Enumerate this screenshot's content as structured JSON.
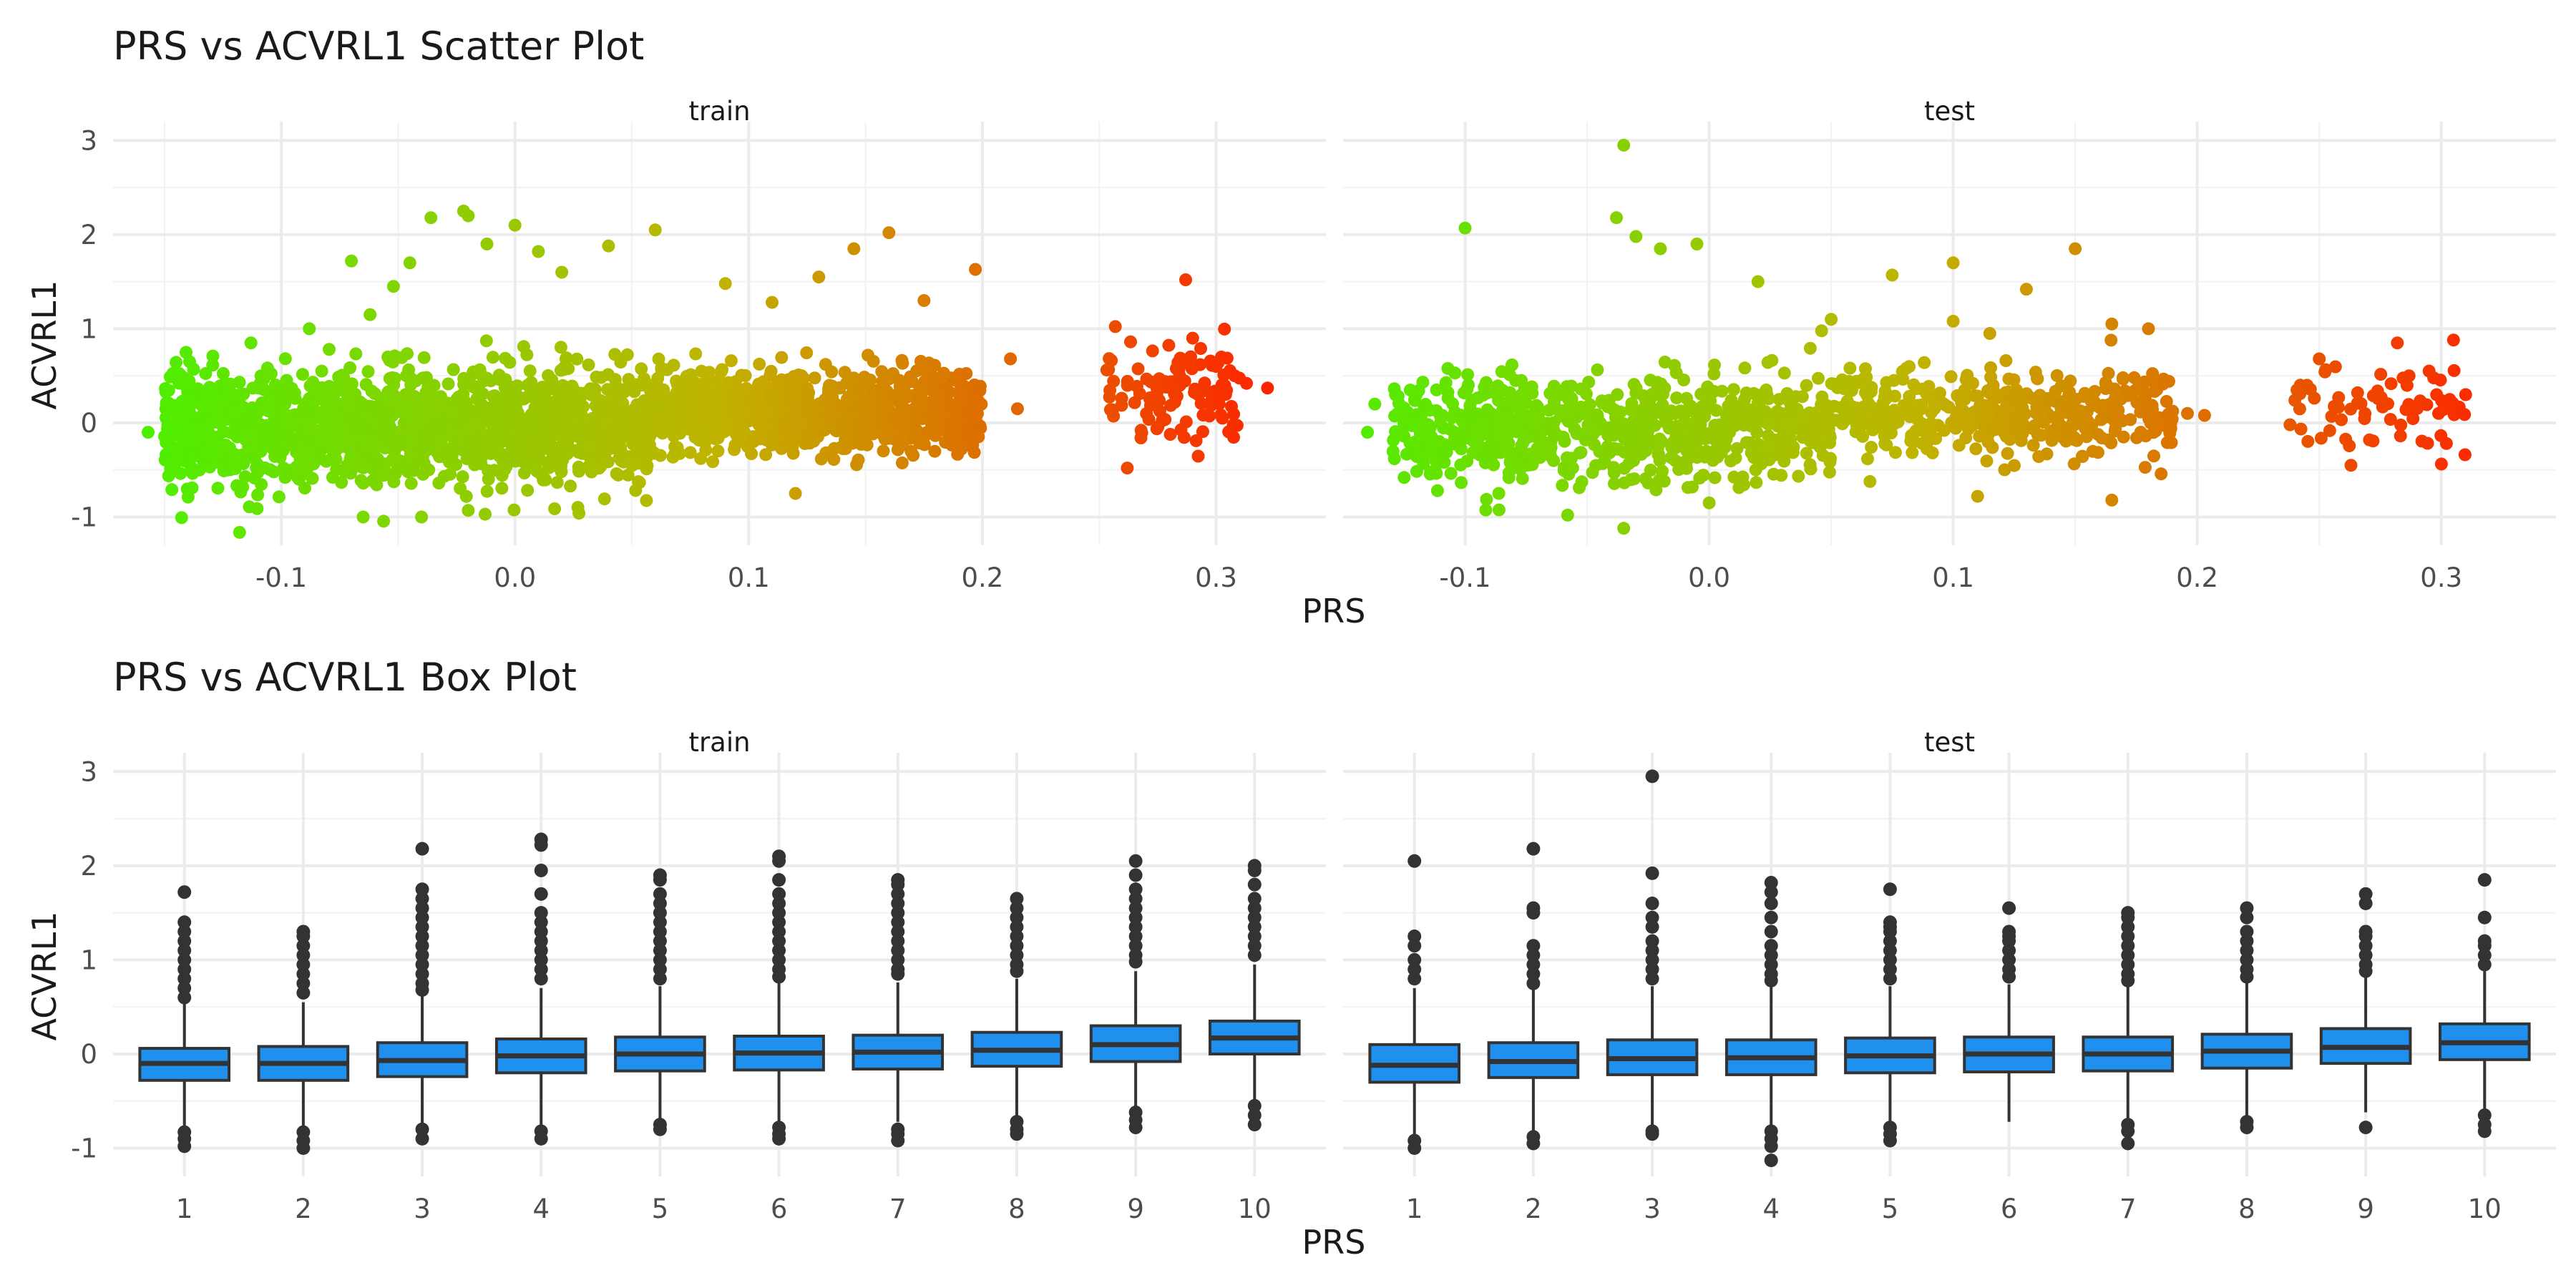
{
  "chart_data": [
    {
      "type": "scatter",
      "title": "PRS vs ACVRL1 Scatter Plot",
      "xlabel": "PRS",
      "ylabel": "ACVRL1",
      "ylim": [
        -1.3,
        3.2
      ],
      "y_ticks": [
        "3",
        "2",
        "1",
        "0",
        "-1"
      ],
      "y_tick_values": [
        3,
        2,
        1,
        0,
        -1
      ],
      "grid": true,
      "legend": "none",
      "color_scale": {
        "low": "#4cf000",
        "mid": "#c0b400",
        "high": "#ff2000",
        "domain": [
          -0.16,
          0.33
        ]
      },
      "panels": [
        {
          "label": "train",
          "xlim": [
            -0.172,
            0.347
          ],
          "x_ticks": [
            "-0.1",
            "0.0",
            "0.1",
            "0.2",
            "0.3"
          ],
          "x_tick_values": [
            -0.1,
            0.0,
            0.1,
            0.2,
            0.3
          ],
          "clusters": [
            {
              "x_range": [
                -0.15,
                0.06
              ],
              "y_mean": -0.05,
              "y_sd": 0.3,
              "n": 1500
            },
            {
              "x_range": [
                0.06,
                0.2
              ],
              "y_mean": 0.12,
              "y_sd": 0.22,
              "n": 900
            },
            {
              "x_range": [
                0.25,
                0.31
              ],
              "y_mean": 0.3,
              "y_sd": 0.25,
              "n": 110
            }
          ],
          "points": [
            {
              "x": -0.157,
              "y": -0.1
            },
            {
              "x": -0.143,
              "y": 0.05
            },
            {
              "x": -0.135,
              "y": -0.5
            },
            {
              "x": -0.13,
              "y": 0.35
            },
            {
              "x": -0.113,
              "y": 0.85
            },
            {
              "x": -0.088,
              "y": 1.0
            },
            {
              "x": -0.062,
              "y": 1.15
            },
            {
              "x": -0.07,
              "y": 1.72
            },
            {
              "x": -0.052,
              "y": 1.45
            },
            {
              "x": -0.045,
              "y": 1.7
            },
            {
              "x": -0.036,
              "y": 2.18
            },
            {
              "x": -0.022,
              "y": 2.25
            },
            {
              "x": -0.02,
              "y": 2.2
            },
            {
              "x": -0.012,
              "y": 1.9
            },
            {
              "x": 0.0,
              "y": 2.1
            },
            {
              "x": 0.01,
              "y": 1.82
            },
            {
              "x": 0.02,
              "y": 1.6
            },
            {
              "x": 0.04,
              "y": 1.88
            },
            {
              "x": 0.06,
              "y": 2.05
            },
            {
              "x": 0.09,
              "y": 1.48
            },
            {
              "x": 0.11,
              "y": 1.28
            },
            {
              "x": 0.13,
              "y": 1.55
            },
            {
              "x": 0.145,
              "y": 1.85
            },
            {
              "x": 0.16,
              "y": 2.02
            },
            {
              "x": 0.175,
              "y": 1.3
            },
            {
              "x": 0.197,
              "y": 1.63
            },
            {
              "x": 0.212,
              "y": 0.68
            },
            {
              "x": 0.215,
              "y": 0.15
            },
            {
              "x": -0.065,
              "y": -1.0
            },
            {
              "x": -0.04,
              "y": -1.0
            },
            {
              "x": -0.02,
              "y": -0.93
            },
            {
              "x": 0.12,
              "y": -0.75
            },
            {
              "x": 0.262,
              "y": -0.48
            },
            {
              "x": 0.287,
              "y": 1.52
            },
            {
              "x": 0.29,
              "y": 0.9
            },
            {
              "x": 0.3,
              "y": 0.6
            },
            {
              "x": 0.308,
              "y": 0.5
            },
            {
              "x": 0.313,
              "y": 0.42
            },
            {
              "x": 0.322,
              "y": 0.37
            }
          ]
        },
        {
          "label": "test",
          "xlim": [
            -0.15,
            0.347
          ],
          "x_ticks": [
            "-0.1",
            "0.0",
            "0.1",
            "0.2",
            "0.3"
          ],
          "x_tick_values": [
            -0.1,
            0.0,
            0.1,
            0.2,
            0.3
          ],
          "clusters": [
            {
              "x_range": [
                -0.13,
                0.05
              ],
              "y_mean": -0.08,
              "y_sd": 0.3,
              "n": 700
            },
            {
              "x_range": [
                0.05,
                0.19
              ],
              "y_mean": 0.08,
              "y_sd": 0.22,
              "n": 450
            },
            {
              "x_range": [
                0.24,
                0.31
              ],
              "y_mean": 0.15,
              "y_sd": 0.25,
              "n": 70
            }
          ],
          "points": [
            {
              "x": -0.035,
              "y": 2.95
            },
            {
              "x": -0.038,
              "y": 2.18
            },
            {
              "x": -0.1,
              "y": 2.07
            },
            {
              "x": -0.03,
              "y": 1.98
            },
            {
              "x": -0.02,
              "y": 1.85
            },
            {
              "x": -0.005,
              "y": 1.9
            },
            {
              "x": 0.02,
              "y": 1.5
            },
            {
              "x": 0.05,
              "y": 1.1
            },
            {
              "x": 0.075,
              "y": 1.57
            },
            {
              "x": 0.1,
              "y": 1.08
            },
            {
              "x": 0.1,
              "y": 1.7
            },
            {
              "x": 0.115,
              "y": 0.95
            },
            {
              "x": 0.13,
              "y": 1.42
            },
            {
              "x": 0.15,
              "y": 1.85
            },
            {
              "x": 0.165,
              "y": 1.05
            },
            {
              "x": 0.18,
              "y": 1.0
            },
            {
              "x": 0.196,
              "y": 0.1
            },
            {
              "x": 0.203,
              "y": 0.08
            },
            {
              "x": -0.137,
              "y": 0.2
            },
            {
              "x": -0.14,
              "y": -0.1
            },
            {
              "x": -0.125,
              "y": -0.58
            },
            {
              "x": -0.058,
              "y": -0.98
            },
            {
              "x": -0.035,
              "y": -1.12
            },
            {
              "x": 0.0,
              "y": -0.85
            },
            {
              "x": 0.11,
              "y": -0.78
            },
            {
              "x": 0.165,
              "y": -0.82
            },
            {
              "x": 0.238,
              "y": -0.02
            },
            {
              "x": 0.245,
              "y": 0.4
            },
            {
              "x": 0.25,
              "y": 0.68
            },
            {
              "x": 0.263,
              "y": -0.45
            },
            {
              "x": 0.282,
              "y": 0.85
            },
            {
              "x": 0.295,
              "y": 0.55
            },
            {
              "x": 0.305,
              "y": 0.88
            },
            {
              "x": 0.31,
              "y": 0.3
            }
          ]
        }
      ]
    },
    {
      "type": "box",
      "title": "PRS vs ACVRL1 Box Plot",
      "xlabel": "PRS",
      "ylabel": "ACVRL1",
      "ylim": [
        -1.3,
        3.2
      ],
      "y_ticks": [
        "3",
        "2",
        "1",
        "0",
        "-1"
      ],
      "y_tick_values": [
        3,
        2,
        1,
        0,
        -1
      ],
      "grid": true,
      "box_color": "#1f90ee",
      "categories": [
        "1",
        "2",
        "3",
        "4",
        "5",
        "6",
        "7",
        "8",
        "9",
        "10"
      ],
      "panels": [
        {
          "label": "train",
          "boxes": [
            {
              "q1": -0.28,
              "median": -0.1,
              "q3": 0.06,
              "whisker_low": -0.78,
              "whisker_high": 0.55,
              "outliers": [
                1.72,
                1.4,
                1.3,
                1.2,
                1.1,
                1.0,
                0.9,
                0.8,
                0.7,
                0.6,
                -0.83,
                -0.9,
                -0.98
              ]
            },
            {
              "q1": -0.28,
              "median": -0.1,
              "q3": 0.08,
              "whisker_low": -0.78,
              "whisker_high": 0.55,
              "outliers": [
                1.3,
                1.25,
                1.15,
                1.05,
                0.95,
                0.85,
                0.75,
                0.65,
                -0.83,
                -0.92,
                -1.0
              ]
            },
            {
              "q1": -0.24,
              "median": -0.07,
              "q3": 0.12,
              "whisker_low": -0.75,
              "whisker_high": 0.62,
              "outliers": [
                2.18,
                1.75,
                1.65,
                1.55,
                1.45,
                1.35,
                1.25,
                1.15,
                1.05,
                0.95,
                0.85,
                0.75,
                0.68,
                -0.8,
                -0.9
              ]
            },
            {
              "q1": -0.2,
              "median": -0.02,
              "q3": 0.16,
              "whisker_low": -0.75,
              "whisker_high": 0.7,
              "outliers": [
                2.28,
                2.22,
                1.95,
                1.7,
                1.5,
                1.4,
                1.3,
                1.2,
                1.1,
                1.0,
                0.9,
                0.8,
                -0.82,
                -0.9
              ]
            },
            {
              "q1": -0.18,
              "median": 0.0,
              "q3": 0.18,
              "whisker_low": -0.7,
              "whisker_high": 0.72,
              "outliers": [
                1.9,
                1.85,
                1.7,
                1.6,
                1.5,
                1.4,
                1.3,
                1.2,
                1.1,
                1.0,
                0.9,
                0.8,
                -0.75,
                -0.8
              ]
            },
            {
              "q1": -0.17,
              "median": 0.01,
              "q3": 0.19,
              "whisker_low": -0.72,
              "whisker_high": 0.75,
              "outliers": [
                2.1,
                2.05,
                1.85,
                1.7,
                1.6,
                1.5,
                1.4,
                1.3,
                1.2,
                1.1,
                1.0,
                0.9,
                0.82,
                -0.78,
                -0.85,
                -0.9
              ]
            },
            {
              "q1": -0.16,
              "median": 0.02,
              "q3": 0.2,
              "whisker_low": -0.72,
              "whisker_high": 0.76,
              "outliers": [
                1.85,
                1.8,
                1.7,
                1.6,
                1.5,
                1.4,
                1.3,
                1.2,
                1.1,
                1.0,
                0.9,
                0.85,
                -0.8,
                -0.85,
                -0.92
              ]
            },
            {
              "q1": -0.13,
              "median": 0.04,
              "q3": 0.23,
              "whisker_low": -0.65,
              "whisker_high": 0.8,
              "outliers": [
                1.65,
                1.55,
                1.45,
                1.35,
                1.25,
                1.15,
                1.05,
                0.95,
                0.88,
                -0.72,
                -0.8,
                -0.85
              ]
            },
            {
              "q1": -0.08,
              "median": 0.1,
              "q3": 0.3,
              "whisker_low": -0.58,
              "whisker_high": 0.88,
              "outliers": [
                2.05,
                1.9,
                1.75,
                1.65,
                1.55,
                1.45,
                1.35,
                1.25,
                1.15,
                1.05,
                0.98,
                -0.62,
                -0.7,
                -0.78
              ]
            },
            {
              "q1": 0.0,
              "median": 0.17,
              "q3": 0.35,
              "whisker_low": -0.5,
              "whisker_high": 0.95,
              "outliers": [
                2.0,
                1.95,
                1.8,
                1.65,
                1.55,
                1.45,
                1.35,
                1.25,
                1.15,
                1.05,
                -0.55,
                -0.65,
                -0.75
              ]
            }
          ]
        },
        {
          "label": "test",
          "boxes": [
            {
              "q1": -0.3,
              "median": -0.12,
              "q3": 0.1,
              "whisker_low": -0.88,
              "whisker_high": 0.7,
              "outliers": [
                2.05,
                1.25,
                1.15,
                1.0,
                0.9,
                0.8,
                -0.92,
                -1.0
              ]
            },
            {
              "q1": -0.25,
              "median": -0.08,
              "q3": 0.12,
              "whisker_low": -0.82,
              "whisker_high": 0.7,
              "outliers": [
                2.18,
                1.55,
                1.5,
                1.15,
                1.05,
                0.95,
                0.85,
                0.75,
                -0.88,
                -0.95
              ]
            },
            {
              "q1": -0.22,
              "median": -0.05,
              "q3": 0.15,
              "whisker_low": -0.78,
              "whisker_high": 0.72,
              "outliers": [
                2.95,
                1.92,
                1.6,
                1.45,
                1.35,
                1.2,
                1.1,
                1.0,
                0.9,
                0.8,
                -0.82,
                -0.85
              ]
            },
            {
              "q1": -0.22,
              "median": -0.04,
              "q3": 0.15,
              "whisker_low": -0.78,
              "whisker_high": 0.72,
              "outliers": [
                1.82,
                1.72,
                1.6,
                1.45,
                1.3,
                1.15,
                1.05,
                0.95,
                0.85,
                0.78,
                -0.82,
                -0.9,
                -0.98,
                -1.13
              ]
            },
            {
              "q1": -0.2,
              "median": -0.02,
              "q3": 0.17,
              "whisker_low": -0.75,
              "whisker_high": 0.72,
              "outliers": [
                1.75,
                1.4,
                1.35,
                1.3,
                1.2,
                1.1,
                1.0,
                0.9,
                0.8,
                -0.78,
                -0.85,
                -0.92
              ]
            },
            {
              "q1": -0.19,
              "median": 0.0,
              "q3": 0.18,
              "whisker_low": -0.72,
              "whisker_high": 0.74,
              "outliers": [
                1.55,
                1.3,
                1.25,
                1.2,
                1.1,
                1.0,
                0.9,
                0.82
              ]
            },
            {
              "q1": -0.18,
              "median": 0.0,
              "q3": 0.18,
              "whisker_low": -0.72,
              "whisker_high": 0.72,
              "outliers": [
                1.5,
                1.45,
                1.35,
                1.25,
                1.15,
                1.05,
                0.95,
                0.85,
                0.78,
                -0.75,
                -0.82,
                -0.95
              ]
            },
            {
              "q1": -0.15,
              "median": 0.03,
              "q3": 0.21,
              "whisker_low": -0.68,
              "whisker_high": 0.78,
              "outliers": [
                1.55,
                1.45,
                1.3,
                1.2,
                1.1,
                1.0,
                0.9,
                0.82,
                -0.72,
                -0.78
              ]
            },
            {
              "q1": -0.1,
              "median": 0.07,
              "q3": 0.27,
              "whisker_low": -0.62,
              "whisker_high": 0.82,
              "outliers": [
                1.7,
                1.6,
                1.3,
                1.25,
                1.15,
                1.05,
                0.95,
                0.88,
                -0.78
              ]
            },
            {
              "q1": -0.06,
              "median": 0.12,
              "q3": 0.32,
              "whisker_low": -0.58,
              "whisker_high": 0.88,
              "outliers": [
                1.85,
                1.45,
                1.2,
                1.15,
                1.05,
                0.95,
                -0.65,
                -0.75,
                -0.82
              ]
            }
          ]
        }
      ]
    }
  ]
}
